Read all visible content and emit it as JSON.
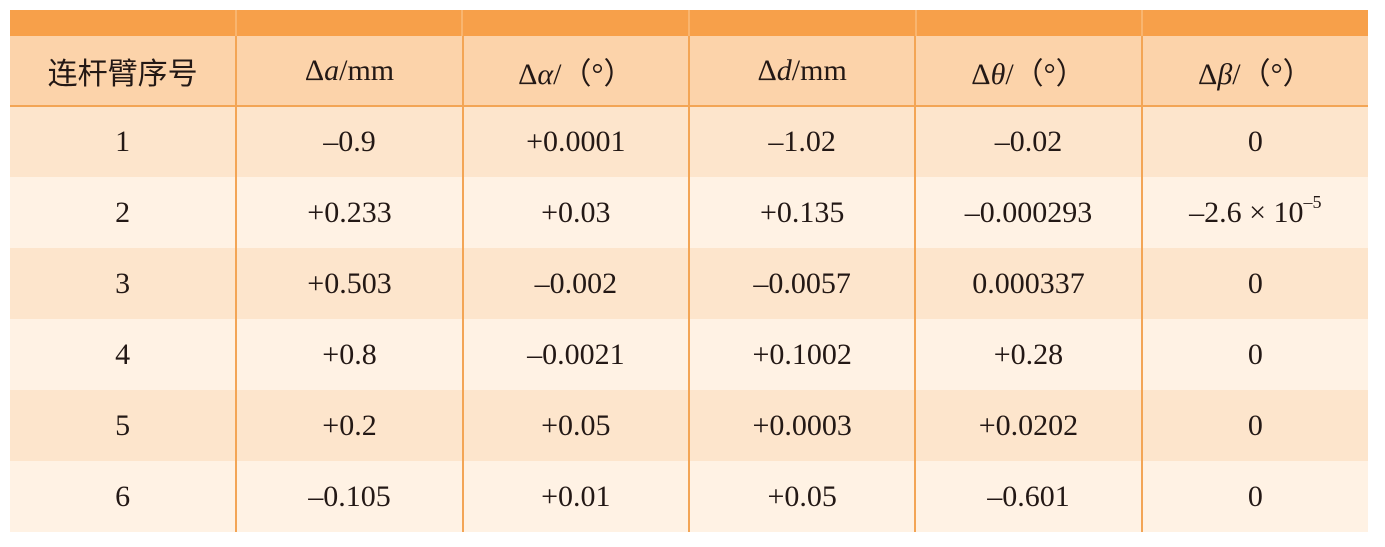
{
  "table": {
    "header": [
      [
        "连杆臂序号"
      ],
      [
        "Δ",
        "a",
        "/mm"
      ],
      [
        "Δ",
        "α",
        "/（°）"
      ],
      [
        "Δ",
        "d",
        "/mm"
      ],
      [
        "Δ",
        "θ",
        "/（°）"
      ],
      [
        "Δ",
        "β",
        "/（°）"
      ]
    ],
    "rows": [
      [
        "1",
        "–0.9",
        "+0.0001",
        "–1.02",
        "–0.02",
        "0"
      ],
      [
        "2",
        "+0.233",
        "+0.03",
        "+0.135",
        "–0.000293",
        {
          "base": "–2.6 × 10",
          "exponent": "–5"
        }
      ],
      [
        "3",
        "+0.503",
        "–0.002",
        "–0.0057",
        "0.000337",
        "0"
      ],
      [
        "4",
        "+0.8",
        "–0.0021",
        "+0.1002",
        "+0.28",
        "0"
      ],
      [
        "5",
        "+0.2",
        "+0.05",
        "+0.0003",
        "+0.0202",
        "0"
      ],
      [
        "6",
        "–0.105",
        "+0.01",
        "+0.05",
        "–0.601",
        "0"
      ]
    ]
  }
}
